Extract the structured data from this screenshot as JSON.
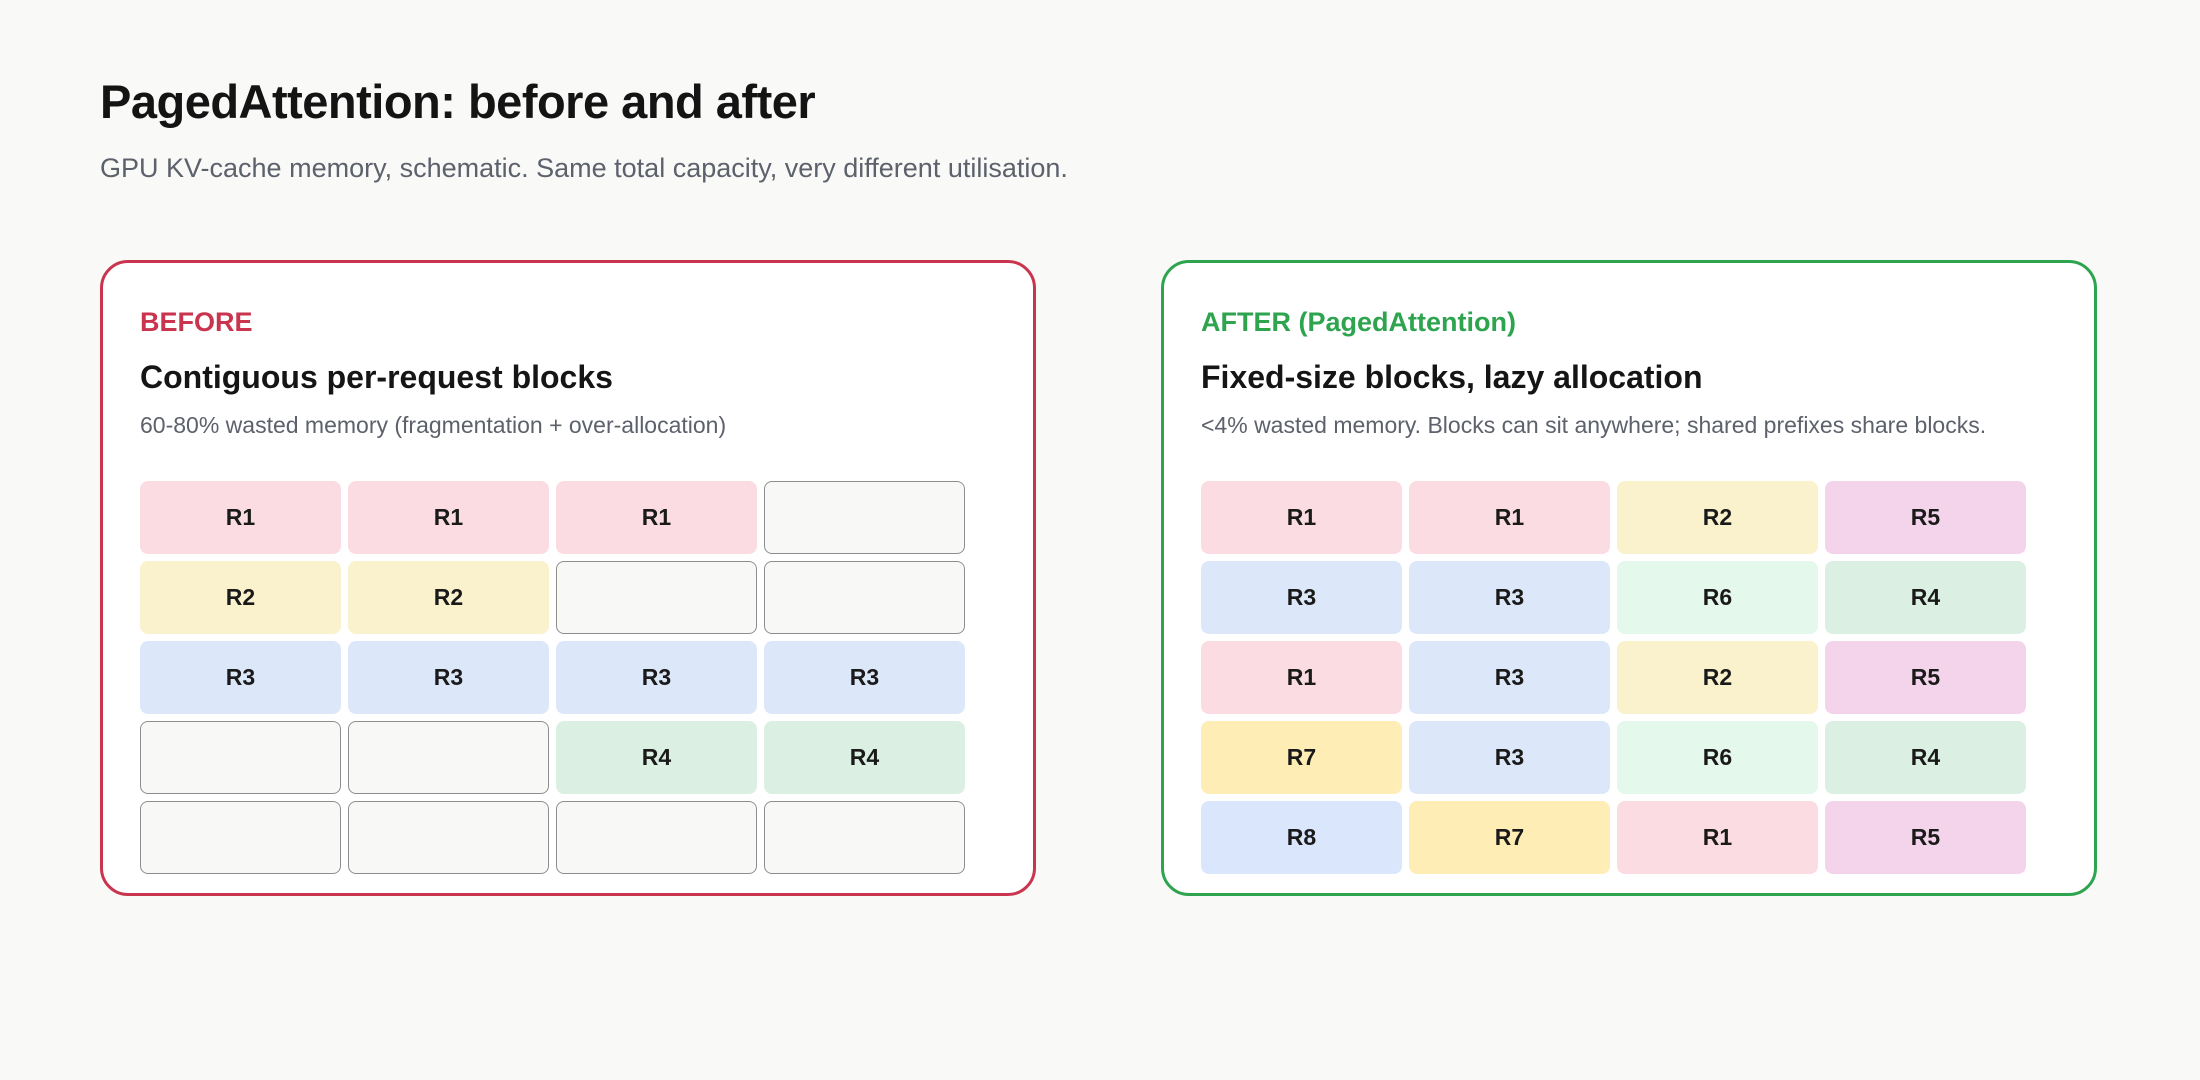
{
  "header": {
    "title": "PagedAttention: before and after",
    "subtitle": "GPU KV-cache memory, schematic. Same total capacity, very different utilisation."
  },
  "colors": {
    "before_accent": "#c9344e",
    "after_accent": "#2ea44f",
    "R1": "#fadce2",
    "R2": "#faf1cd",
    "R3": "#dce8f9",
    "R4": "#dbefe2",
    "R5": "#f4d4ea",
    "R6": "#e5f8ec",
    "R7": "#ffedb6",
    "R8": "#d9e6fb"
  },
  "panels": {
    "before": {
      "tag": "BEFORE",
      "heading": "Contiguous per-request blocks",
      "description": "60-80% wasted memory (fragmentation + over-allocation)",
      "blocks": [
        "R1",
        "R1",
        "R1",
        "",
        "R2",
        "R2",
        "",
        "",
        "R3",
        "R3",
        "R3",
        "R3",
        "",
        "",
        "R4",
        "R4",
        "",
        "",
        "",
        ""
      ]
    },
    "after": {
      "tag": "AFTER (PagedAttention)",
      "heading": "Fixed-size blocks, lazy allocation",
      "description": "<4% wasted memory. Blocks can sit anywhere; shared prefixes share blocks.",
      "blocks": [
        "R1",
        "R1",
        "R2",
        "R5",
        "R3",
        "R3",
        "R6",
        "R4",
        "R1",
        "R3",
        "R2",
        "R5",
        "R7",
        "R3",
        "R6",
        "R4",
        "R8",
        "R7",
        "R1",
        "R5"
      ]
    }
  }
}
